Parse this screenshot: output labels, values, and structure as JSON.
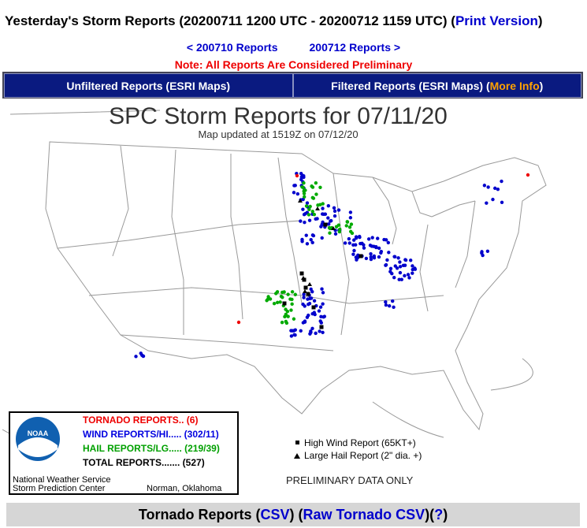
{
  "header": {
    "title": [
      "Yesterday's Storm Reports (20200711 1200 UTC - 20200712 1159 UTC) (",
      "Print Version",
      ")"
    ],
    "prev": "< 200710 Reports",
    "next": "200712 Reports >",
    "note": "Note: All Reports Are Considered Preliminary"
  },
  "tabs": {
    "unfiltered": "Unfiltered Reports (ESRI Maps)",
    "filtered": [
      "Filtered Reports (ESRI Maps) (",
      "More Info",
      ")"
    ]
  },
  "map": {
    "title": "SPC Storm Reports for 07/11/20",
    "subtitle": "Map updated at 1519Z on 07/12/20",
    "legend": {
      "logo": "NOAA",
      "tornado": "TORNADO REPORTS.. (6)",
      "wind": "WIND REPORTS/HI..... (302/11)",
      "hail": "HAIL REPORTS/LG..... (219/39)",
      "total": "TOTAL REPORTS....... (527)",
      "org1": "National Weather Service",
      "org2": "Storm Prediction Center",
      "city": "Norman, Oklahoma"
    },
    "key": {
      "wind": "High Wind Report (65KT+)",
      "hail": "Large Hail Report (2\" dia. +)",
      "prelim": "PRELIMINARY DATA ONLY"
    }
  },
  "footer": [
    "Tornado Reports (",
    "CSV",
    ") (",
    "Raw Tornado CSV",
    ")(",
    "?",
    ")"
  ]
}
